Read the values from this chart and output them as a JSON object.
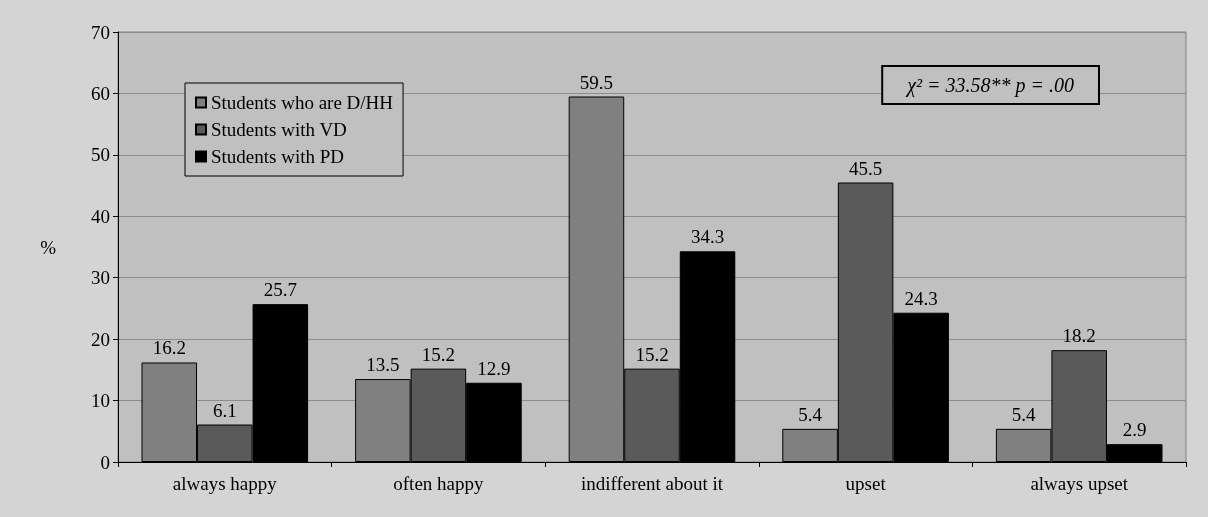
{
  "chart_data": {
    "type": "bar",
    "ylabel": "%",
    "categories": [
      "always happy",
      "often happy",
      "indifferent about it",
      "upset",
      "always upset"
    ],
    "series": [
      {
        "name": "Students who are D/HH",
        "color": "#808080",
        "values": [
          16.2,
          13.5,
          59.5,
          5.4,
          5.4
        ]
      },
      {
        "name": "Students with VD",
        "color": "#5a5a5a",
        "values": [
          6.1,
          15.2,
          15.2,
          45.5,
          18.2
        ]
      },
      {
        "name": "Students with PD",
        "color": "#000000",
        "values": [
          25.7,
          12.9,
          34.3,
          24.3,
          2.9
        ]
      }
    ],
    "ylim": [
      0,
      70
    ],
    "yticks": [
      0,
      10,
      20,
      30,
      40,
      50,
      60,
      70
    ],
    "grid": "y",
    "legend": "top left",
    "data_labels": true,
    "annotations": [
      "χ² = 33.58** p = .00"
    ]
  }
}
